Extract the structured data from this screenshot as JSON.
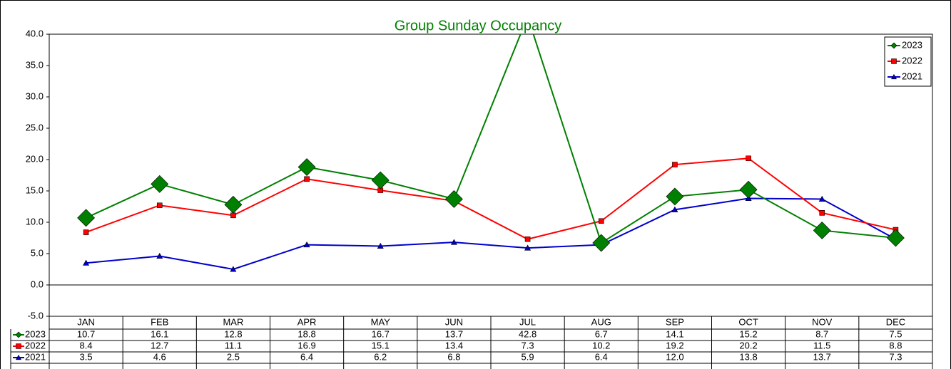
{
  "chart_data": {
    "type": "line",
    "title": "Group Sunday Occupancy",
    "categories": [
      "JAN",
      "FEB",
      "MAR",
      "APR",
      "MAY",
      "JUN",
      "JUL",
      "AUG",
      "SEP",
      "OCT",
      "NOV",
      "DEC"
    ],
    "series": [
      {
        "name": "2023",
        "color": "#008000",
        "marker": "diamond",
        "values": [
          10.7,
          16.1,
          12.8,
          18.8,
          16.7,
          13.7,
          42.8,
          6.7,
          14.1,
          15.2,
          8.7,
          7.5
        ]
      },
      {
        "name": "2022",
        "color": "#ff0000",
        "marker": "square",
        "values": [
          8.4,
          12.7,
          11.1,
          16.9,
          15.1,
          13.4,
          7.3,
          10.2,
          19.2,
          20.2,
          11.5,
          8.8
        ]
      },
      {
        "name": "2021",
        "color": "#0000cc",
        "marker": "triangle",
        "values": [
          3.5,
          4.6,
          2.5,
          6.4,
          6.2,
          6.8,
          5.9,
          6.4,
          12,
          13.8,
          13.7,
          7.3
        ],
        "value_labels": [
          "3.5",
          "4.6",
          "2.5",
          "6.4",
          "6.2",
          "6.8",
          "5.9",
          "6.4",
          "12.0",
          "13.8",
          "13.7",
          "7.3"
        ]
      }
    ],
    "ylim": [
      -5,
      40
    ],
    "yticks": [
      {
        "value": -5,
        "label": "-5.0"
      },
      {
        "value": 0,
        "label": "0.0"
      },
      {
        "value": 5,
        "label": "5.0"
      },
      {
        "value": 10,
        "label": "10.0"
      },
      {
        "value": 15,
        "label": "15.0"
      },
      {
        "value": 20,
        "label": "20.0"
      },
      {
        "value": 25,
        "label": "25.0"
      },
      {
        "value": 30,
        "label": "30.0"
      },
      {
        "value": 35,
        "label": "35.0"
      },
      {
        "value": 40,
        "label": "40.0"
      }
    ],
    "legend": "top-right",
    "data_table": true
  }
}
